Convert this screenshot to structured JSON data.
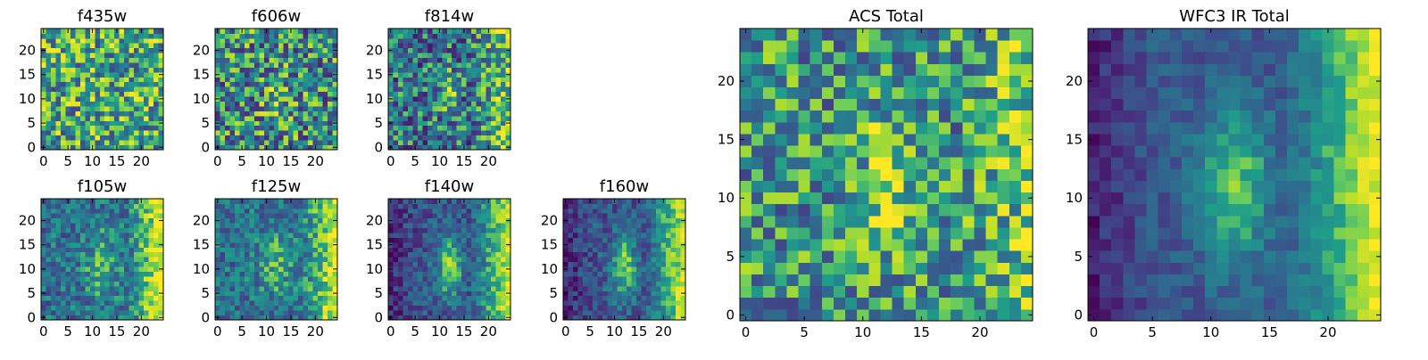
{
  "chart_data": [
    {
      "type": "heatmap",
      "title": "f435w",
      "xticks": [
        "0",
        "5",
        "10",
        "15",
        "20"
      ],
      "yticks": [
        "0",
        "5",
        "10",
        "15",
        "20"
      ],
      "xlim": [
        -0.5,
        24.5
      ],
      "ylim": [
        -0.5,
        24.5
      ],
      "grid": false,
      "colormap": "viridis",
      "seed": 11,
      "pattern": "noise"
    },
    {
      "type": "heatmap",
      "title": "f606w",
      "xticks": [
        "0",
        "5",
        "10",
        "15",
        "20"
      ],
      "yticks": [
        "0",
        "5",
        "10",
        "15",
        "20"
      ],
      "xlim": [
        -0.5,
        24.5
      ],
      "ylim": [
        -0.5,
        24.5
      ],
      "grid": false,
      "colormap": "viridis",
      "seed": 23,
      "pattern": "noise-source"
    },
    {
      "type": "heatmap",
      "title": "f814w",
      "xticks": [
        "0",
        "5",
        "10",
        "15",
        "20"
      ],
      "yticks": [
        "0",
        "5",
        "10",
        "15",
        "20"
      ],
      "xlim": [
        -0.5,
        24.5
      ],
      "ylim": [
        -0.5,
        24.5
      ],
      "grid": false,
      "colormap": "viridis",
      "seed": 37,
      "pattern": "noise-source-edge"
    },
    {
      "type": "heatmap",
      "title": "f105w",
      "xticks": [
        "0",
        "5",
        "10",
        "15",
        "20"
      ],
      "yticks": [
        "0",
        "5",
        "10",
        "15",
        "20"
      ],
      "xlim": [
        -0.5,
        24.5
      ],
      "ylim": [
        -0.5,
        24.5
      ],
      "grid": false,
      "colormap": "viridis",
      "seed": 41,
      "pattern": "ir"
    },
    {
      "type": "heatmap",
      "title": "f125w",
      "xticks": [
        "0",
        "5",
        "10",
        "15",
        "20"
      ],
      "yticks": [
        "0",
        "5",
        "10",
        "15",
        "20"
      ],
      "xlim": [
        -0.5,
        24.5
      ],
      "ylim": [
        -0.5,
        24.5
      ],
      "grid": false,
      "colormap": "viridis",
      "seed": 53,
      "pattern": "ir"
    },
    {
      "type": "heatmap",
      "title": "f140w",
      "xticks": [
        "0",
        "5",
        "10",
        "15",
        "20"
      ],
      "yticks": [
        "0",
        "5",
        "10",
        "15",
        "20"
      ],
      "xlim": [
        -0.5,
        24.5
      ],
      "ylim": [
        -0.5,
        24.5
      ],
      "grid": false,
      "colormap": "viridis",
      "seed": 67,
      "pattern": "ir-strong"
    },
    {
      "type": "heatmap",
      "title": "f160w",
      "xticks": [
        "0",
        "5",
        "10",
        "15",
        "20"
      ],
      "yticks": [
        "0",
        "5",
        "10",
        "15",
        "20"
      ],
      "xlim": [
        -0.5,
        24.5
      ],
      "ylim": [
        -0.5,
        24.5
      ],
      "grid": false,
      "colormap": "viridis",
      "seed": 79,
      "pattern": "ir-strong"
    },
    {
      "type": "heatmap",
      "title": "ACS Total",
      "xticks": [
        "0",
        "5",
        "10",
        "15",
        "20"
      ],
      "yticks": [
        "0",
        "5",
        "10",
        "15",
        "20"
      ],
      "xlim": [
        -0.5,
        24.5
      ],
      "ylim": [
        -0.5,
        24.5
      ],
      "grid": false,
      "colormap": "viridis",
      "seed": 97,
      "pattern": "acs-total"
    },
    {
      "type": "heatmap",
      "title": "WFC3 IR Total",
      "xticks": [
        "0",
        "5",
        "10",
        "15",
        "20"
      ],
      "yticks": [
        "0",
        "5",
        "10",
        "15",
        "20"
      ],
      "xlim": [
        -0.5,
        24.5
      ],
      "ylim": [
        -0.5,
        24.5
      ],
      "grid": false,
      "colormap": "viridis",
      "seed": 131,
      "pattern": "ir-total"
    }
  ],
  "colors": {
    "viridis": [
      "#440154",
      "#482777",
      "#3f4a8a",
      "#31678e",
      "#26838f",
      "#1f9d8a",
      "#6cce5a",
      "#b6de2b",
      "#fee825"
    ],
    "axes_edge": "#000000",
    "background": "#ffffff"
  }
}
